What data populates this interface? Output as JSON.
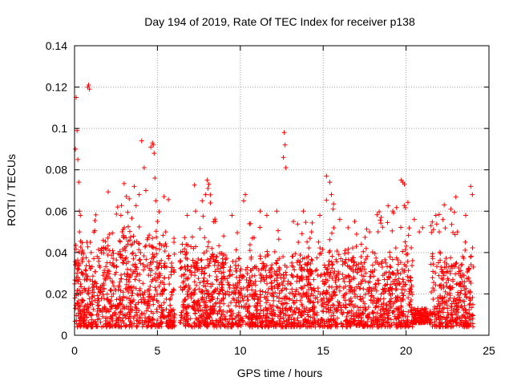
{
  "chart_data": {
    "type": "scatter",
    "title": "Day 194 of 2019, Rate Of TEC Index for receiver p138",
    "xlabel": "GPS time / hours",
    "ylabel": "ROTI / TECUs",
    "xlim": [
      0,
      25
    ],
    "ylim": [
      0,
      0.14
    ],
    "xticks": [
      0,
      5,
      10,
      15,
      20,
      25
    ],
    "yticks": [
      0,
      0.02,
      0.04,
      0.06,
      0.08,
      0.1,
      0.12,
      0.14
    ],
    "xtick_labels": [
      "0",
      "5",
      "10",
      "15",
      "20",
      "25"
    ],
    "ytick_labels": [
      "0",
      "0.02",
      "0.04",
      "0.06",
      "0.08",
      "0.1",
      "0.12",
      "0.14"
    ],
    "grid": true,
    "marker": "+",
    "color": "#ff0000",
    "series": [
      {
        "x": [
          0.05,
          0.1,
          0.15,
          0.2,
          0.25,
          0.3,
          0.35,
          0.8,
          0.85,
          0.9,
          0.95,
          1.0,
          0.1,
          0.15,
          0.2,
          0.25,
          0.3,
          2.6,
          2.8,
          3.3,
          3.6,
          3.9,
          4.05,
          4.2,
          4.3,
          4.6,
          4.7,
          4.75,
          4.8,
          4.85,
          4.9,
          5.0,
          5.5,
          6.0,
          6.5,
          6.8,
          7.3,
          7.7,
          7.9,
          8.0,
          8.05,
          8.1,
          8.2,
          8.5,
          9.5,
          10.2,
          10.3,
          10.6,
          11.2,
          11.6,
          12.2,
          12.6,
          12.65,
          12.7,
          12.75,
          13.2,
          13.8,
          14.3,
          14.8,
          15.2,
          15.4,
          15.5,
          15.6,
          16.0,
          16.5,
          16.9,
          17.3,
          17.8,
          18.5,
          19.2,
          19.7,
          19.8,
          19.9,
          20.5,
          20.8,
          21.0,
          21.5,
          21.8,
          22.3,
          22.7,
          23.1,
          23.6,
          23.9,
          24.0,
          2.0,
          3.0,
          9.0,
          13.5,
          17.0,
          22.0
        ],
        "y": [
          0.09,
          0.115,
          0.099,
          0.085,
          0.074,
          0.06,
          0.058,
          0.12,
          0.121,
          0.119,
          0.045,
          0.04,
          0.035,
          0.03,
          0.028,
          0.032,
          0.05,
          0.062,
          0.058,
          0.066,
          0.072,
          0.068,
          0.094,
          0.081,
          0.07,
          0.091,
          0.093,
          0.092,
          0.088,
          0.076,
          0.065,
          0.055,
          0.05,
          0.045,
          0.044,
          0.058,
          0.06,
          0.065,
          0.068,
          0.075,
          0.071,
          0.073,
          0.064,
          0.055,
          0.058,
          0.065,
          0.068,
          0.054,
          0.06,
          0.058,
          0.06,
          0.086,
          0.098,
          0.092,
          0.081,
          0.055,
          0.06,
          0.05,
          0.058,
          0.077,
          0.074,
          0.068,
          0.061,
          0.056,
          0.052,
          0.055,
          0.044,
          0.05,
          0.057,
          0.06,
          0.075,
          0.074,
          0.073,
          0.056,
          0.05,
          0.052,
          0.053,
          0.058,
          0.063,
          0.061,
          0.05,
          0.058,
          0.072,
          0.068,
          0.047,
          0.052,
          0.048,
          0.045,
          0.043,
          0.05
        ]
      }
    ]
  }
}
